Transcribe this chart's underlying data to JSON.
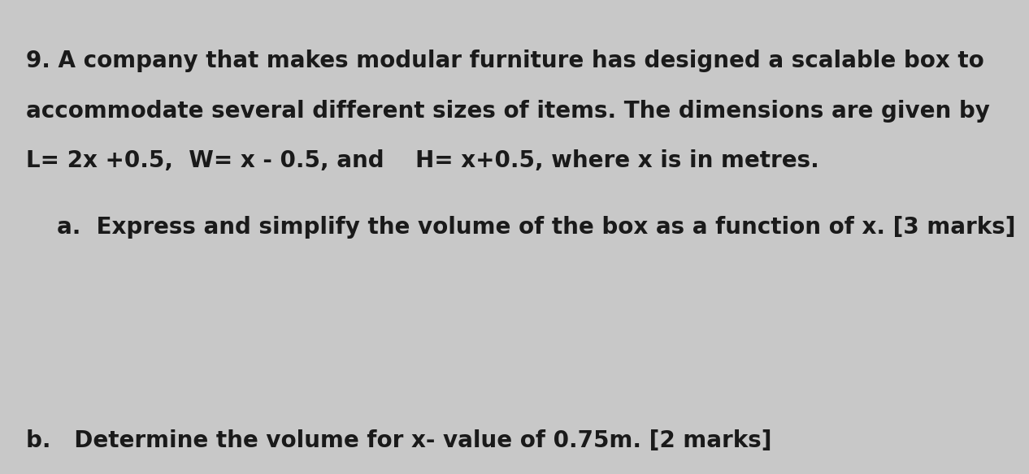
{
  "background_color": "#c8c8c8",
  "text_color": "#1a1a1a",
  "line1": "9. A company that makes modular furniture has designed a scalable box to",
  "line2": "accommodate several different sizes of items. The dimensions are given by",
  "line3": "L= 2x +0.5,  W= x - 0.5, and    H= x+0.5, where x is in metres.",
  "line4": "a.  Express and simplify the volume of the box as a function of x. [3 marks]",
  "line5": "b.   Determine the volume for x- value of 0.75m. [2 marks]",
  "fontsize_main": 20,
  "font_family": "DejaVu Sans"
}
